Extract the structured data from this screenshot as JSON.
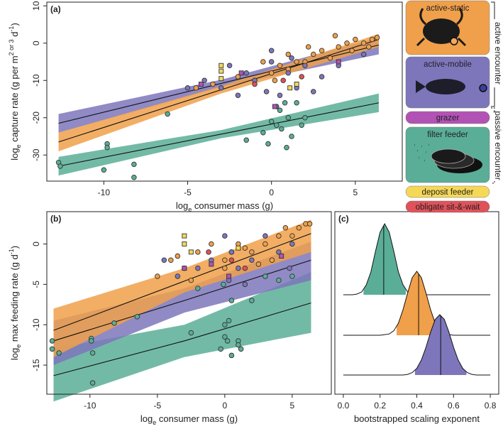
{
  "chart_data": [
    {
      "type": "scatter",
      "title": "(a)",
      "xlabel": [
        {
          "text": "log"
        },
        {
          "text": "e",
          "shift": "sub"
        },
        {
          "text": " consumer mass (g)"
        }
      ],
      "ylabel": [
        {
          "text": "log"
        },
        {
          "text": "e",
          "shift": "sub"
        },
        {
          "text": " capture rate (g per m"
        },
        {
          "text": "2 or 3",
          "shift": "super"
        },
        {
          "text": " d"
        },
        {
          "text": "-1",
          "shift": "super"
        },
        {
          "text": ")"
        }
      ],
      "xlim": [
        -13.4,
        7.8
      ],
      "ylim": [
        -37,
        11
      ],
      "xticks": [
        -10,
        -5,
        0,
        5
      ],
      "yticks": [
        -30,
        -20,
        -10,
        0,
        10
      ],
      "legend_brackets": [
        "active encounter",
        "passive encounter"
      ],
      "series": [
        {
          "name": "active-static",
          "color": "#f0a04a",
          "marker": "circle",
          "x": [
            -4.5,
            -3.5,
            -2,
            -1,
            0,
            0.5,
            1,
            1.5,
            2,
            2.5,
            3,
            3.5,
            4,
            4.5,
            5,
            5.5,
            6,
            6.3,
            3.8,
            2.2,
            1,
            0.2,
            -0.5,
            4.8,
            5.8
          ],
          "y": [
            -12,
            -11,
            -9,
            -10,
            -8,
            -6,
            -7,
            -5,
            -5,
            -3,
            -2,
            -4,
            -1,
            0,
            1,
            0,
            1,
            1.5,
            2,
            -1,
            -3,
            -10,
            -5,
            -2,
            -1
          ]
        },
        {
          "name": "active-mobile",
          "color": "#7d76bb",
          "marker": "circle",
          "x": [
            -5,
            -4,
            -3,
            -2.5,
            -2,
            -1,
            0,
            0,
            0.5,
            1,
            1.5,
            2,
            0.3,
            -0.3,
            3,
            2.5,
            1.2,
            -1.5,
            4,
            5.5
          ],
          "y": [
            -12,
            -10,
            -12,
            -6,
            -14,
            -10,
            -2,
            -5,
            -14,
            -8,
            -12,
            -6,
            -17,
            -13,
            -9,
            -13,
            -4,
            -8,
            -6,
            -3
          ]
        },
        {
          "name": "grazer",
          "color": "#b352b5",
          "marker": "square",
          "x": [
            -1.8,
            0.2,
            4,
            -4.2
          ],
          "y": [
            -8,
            -17,
            -5,
            -11
          ]
        },
        {
          "name": "filter feeder",
          "color": "#5aae97",
          "marker": "circle",
          "x": [
            -12.7,
            -12.6,
            -9.8,
            -9.8,
            -10,
            -8.2,
            -8.2,
            -6.2,
            -0.5,
            0,
            0.3,
            0.5,
            0.8,
            1,
            1.2,
            1.5,
            -0.2,
            0.6,
            2,
            1.8,
            -1.5,
            0.9
          ],
          "y": [
            -32,
            -33,
            -27,
            -28,
            -34,
            -32.5,
            -36,
            -19,
            -24,
            -21,
            -22,
            -18,
            -16,
            -20,
            -25,
            -16,
            -27,
            -23,
            -20,
            -22,
            -26,
            -28
          ]
        },
        {
          "name": "deposit feeder",
          "color": "#f6d857",
          "marker": "square",
          "x": [
            -3,
            -3,
            -3,
            1.1,
            1.5
          ],
          "y": [
            -6,
            -7.5,
            -9.5,
            -12,
            -11
          ]
        },
        {
          "name": "obligate sit-&-wait",
          "color": "#e0525a",
          "marker": "circle",
          "x": [
            0.7,
            1.8,
            -1
          ],
          "y": [
            -10,
            -9,
            -11
          ]
        }
      ],
      "fits": [
        {
          "color": "#5aae97",
          "x": [
            -12.7,
            -3,
            6.4
          ],
          "y": [
            -33,
            -24.4,
            -16
          ],
          "lower": [
            -35.5,
            -25.5,
            -18.5
          ],
          "upper": [
            -30.5,
            -23.3,
            -13.5
          ]
        },
        {
          "color": "#7d76bb",
          "x": [
            -12.7,
            -3,
            6.4
          ],
          "y": [
            -21.5,
            -10.8,
            -0.5
          ],
          "lower": [
            -24,
            -11.8,
            -3
          ],
          "upper": [
            -19,
            -9.8,
            1.5
          ]
        },
        {
          "color": "#f0a04a",
          "x": [
            -12.7,
            -3,
            6.4
          ],
          "y": [
            -26.5,
            -12.5,
            1
          ],
          "lower": [
            -29,
            -13.5,
            -1
          ],
          "upper": [
            -24,
            -11.5,
            2.5
          ]
        }
      ]
    },
    {
      "type": "scatter",
      "title": "(b)",
      "xlabel": [
        {
          "text": "log"
        },
        {
          "text": "e",
          "shift": "sub"
        },
        {
          "text": " consumer mass (g)"
        }
      ],
      "ylabel": [
        {
          "text": "log"
        },
        {
          "text": "e",
          "shift": "sub"
        },
        {
          "text": " max feeding rate (g d"
        },
        {
          "text": "-1",
          "shift": "super"
        },
        {
          "text": ")"
        }
      ],
      "xlim": [
        -13.2,
        7.9
      ],
      "ylim": [
        -18.6,
        4
      ],
      "xticks": [
        -10,
        -5,
        0,
        5
      ],
      "yticks": [
        -15,
        -10,
        -5,
        0
      ],
      "series": [
        {
          "color": "#f0a04a",
          "marker": "circle",
          "x": [
            -4,
            -3,
            -2,
            -1,
            0,
            0.5,
            1,
            1.5,
            2,
            3,
            4,
            4.5,
            5,
            5.5,
            6,
            6.3,
            -5,
            -2.5,
            0,
            3.5,
            -3.5,
            2.5
          ],
          "y": [
            -2,
            -3,
            -1,
            0,
            -2,
            -1,
            0,
            -0.5,
            -1,
            0,
            1,
            2,
            1,
            2,
            2.5,
            2.5,
            -4,
            -4.5,
            -3,
            -2,
            -1.5,
            -2.5
          ]
        },
        {
          "color": "#7d76bb",
          "marker": "circle",
          "x": [
            -4.5,
            -3.5,
            -2,
            0,
            0.5,
            1,
            2,
            3,
            4,
            5,
            1.5,
            -1,
            0.3,
            4.8
          ],
          "y": [
            -2,
            -4,
            -3,
            1,
            -1,
            -3,
            -2,
            1,
            -1,
            0,
            -5,
            -2,
            -4.5,
            -3
          ]
        },
        {
          "color": "#b352b5",
          "marker": "square",
          "x": [
            -3,
            -1,
            0.3,
            4.2
          ],
          "y": [
            -3,
            -2.5,
            -4,
            -1.5
          ]
        },
        {
          "color": "#5aae97",
          "marker": "circle",
          "x": [
            -12.8,
            -12.8,
            -12.3,
            -9.9,
            -9.9,
            -9.8,
            -9.8,
            -8.2,
            -6.5,
            -2.5,
            0,
            0.2,
            0.5,
            1,
            1.2,
            -0.3,
            0,
            0.5,
            1,
            -0.1,
            0.3,
            2,
            3,
            -2,
            4,
            5
          ],
          "y": [
            -12,
            -13,
            -13.5,
            -11.7,
            -12,
            -13.5,
            -17.2,
            -9.8,
            -9,
            -11,
            -10,
            -12,
            -7,
            -12,
            -13,
            -13,
            -11.5,
            -13.8,
            -12.5,
            -5,
            -9.5,
            -7,
            -4,
            -5.5,
            -4.5,
            -4
          ]
        },
        {
          "color": "#f6d857",
          "marker": "square",
          "x": [
            -3,
            -3,
            -2.5,
            1
          ],
          "y": [
            1,
            0,
            -1,
            -0.5
          ]
        },
        {
          "color": "#e0525a",
          "marker": "circle",
          "x": [
            0.5,
            1.5,
            -1.2
          ],
          "y": [
            -2,
            -3,
            -1
          ]
        }
      ],
      "fits": [
        {
          "color": "#5aae97",
          "x": [
            -12.7,
            -3,
            6.4
          ],
          "y": [
            -16.3,
            -12,
            -7.3
          ],
          "lower": [
            -19.5,
            -14,
            -11
          ],
          "upper": [
            -13,
            -10,
            -3.5
          ]
        },
        {
          "color": "#7d76bb",
          "x": [
            -12.7,
            -3,
            6.4
          ],
          "y": [
            -12,
            -7,
            -2
          ],
          "lower": [
            -15,
            -8.5,
            -4.5
          ],
          "upper": [
            -9.5,
            -5.5,
            0.3
          ]
        },
        {
          "color": "#f0a04a",
          "x": [
            -12.7,
            -3,
            6.4
          ],
          "y": [
            -10.7,
            -4.6,
            1.3
          ],
          "lower": [
            -14,
            -6,
            -1
          ],
          "upper": [
            -8,
            -3,
            3
          ]
        }
      ]
    },
    {
      "type": "density",
      "title": "(c)",
      "xlabel": [
        {
          "text": "bootstrapped scaling exponent"
        }
      ],
      "xlim": [
        -0.046,
        0.846
      ],
      "xticks": [
        {
          "value": 0,
          "label": "0.0"
        },
        0.2,
        0.4,
        0.6,
        0.8
      ],
      "x": [
        0,
        0.025,
        0.05,
        0.075,
        0.1,
        0.125,
        0.15,
        0.175,
        0.2,
        0.225,
        0.25,
        0.275,
        0.3,
        0.325,
        0.35,
        0.375,
        0.4,
        0.425,
        0.45,
        0.475,
        0.5,
        0.525,
        0.55,
        0.575,
        0.6,
        0.625,
        0.65,
        0.675,
        0.7,
        0.725,
        0.75,
        0.775,
        0.8
      ],
      "series": [
        {
          "color": "#5aae97",
          "density": [
            0,
            0,
            0,
            0.01,
            0.04,
            0.14,
            0.32,
            0.61,
            0.88,
            1,
            0.88,
            0.61,
            0.32,
            0.14,
            0.04,
            0.01,
            0,
            0,
            0,
            0,
            0,
            0,
            0,
            0,
            0,
            0,
            0,
            0,
            0,
            0,
            0,
            0,
            0
          ],
          "interval": [
            0.11,
            0.34
          ],
          "median": 0.22
        },
        {
          "color": "#f0a04a",
          "density": [
            0,
            0,
            0,
            0,
            0,
            0,
            0,
            0,
            0,
            0.01,
            0.02,
            0.07,
            0.19,
            0.4,
            0.66,
            0.9,
            1,
            0.9,
            0.66,
            0.4,
            0.19,
            0.07,
            0.02,
            0.01,
            0,
            0,
            0,
            0,
            0,
            0,
            0,
            0,
            0
          ],
          "interval": [
            0.29,
            0.55
          ],
          "median": 0.41
        },
        {
          "color": "#7d76bb",
          "density": [
            0,
            0,
            0,
            0,
            0,
            0,
            0,
            0,
            0,
            0,
            0,
            0,
            0,
            0,
            0.01,
            0.04,
            0.11,
            0.25,
            0.46,
            0.71,
            0.92,
            1,
            0.92,
            0.71,
            0.46,
            0.25,
            0.11,
            0.04,
            0.01,
            0,
            0,
            0,
            0
          ],
          "interval": [
            0.39,
            0.67
          ],
          "median": 0.53
        }
      ]
    }
  ]
}
